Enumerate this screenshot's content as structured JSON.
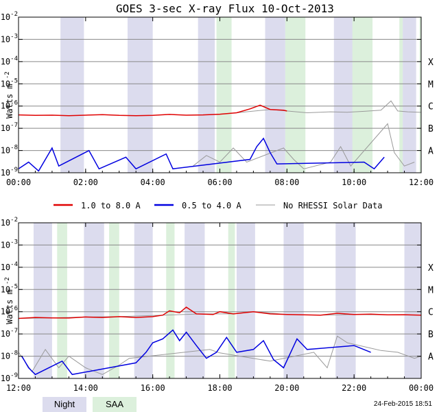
{
  "chart_data": {
    "type": "line",
    "title": "GOES 3-sec X-ray Flux   10-Oct-2013",
    "ylabel": "Watts m",
    "ylabel_exponent": "-2",
    "yscale": "log",
    "ylim": [
      1e-09,
      0.01
    ],
    "y_ticks": [
      {
        "base": "10",
        "exp": "-2"
      },
      {
        "base": "10",
        "exp": "-3"
      },
      {
        "base": "10",
        "exp": "-4"
      },
      {
        "base": "10",
        "exp": "-5"
      },
      {
        "base": "10",
        "exp": "-6"
      },
      {
        "base": "10",
        "exp": "-7"
      },
      {
        "base": "10",
        "exp": "-8"
      },
      {
        "base": "10",
        "exp": "-9"
      }
    ],
    "flare_classes": [
      {
        "label": "X",
        "value": 0.0001
      },
      {
        "label": "M",
        "value": 1e-05
      },
      {
        "label": "C",
        "value": 1e-06
      },
      {
        "label": "B",
        "value": 1e-07
      },
      {
        "label": "A",
        "value": 1e-08
      }
    ],
    "legend": {
      "long": {
        "label": "1.0 to 8.0 A",
        "color": "#e00000"
      },
      "short": {
        "label": "0.5 to 4.0 A",
        "color": "#0000e0"
      },
      "nodata": {
        "label": "No RHESSI Solar Data",
        "color": "#999999"
      }
    },
    "shading_legend": {
      "night": {
        "label": "Night",
        "color": "#dcdcee"
      },
      "saa": {
        "label": "SAA",
        "color": "#dcf0dc"
      }
    },
    "footer": "24-Feb-2015 18:51",
    "panels": [
      {
        "xlim_hours": [
          0,
          12
        ],
        "x_ticks": [
          "00:00",
          "02:00",
          "04:00",
          "06:00",
          "08:00",
          "10:00",
          "12:00"
        ],
        "night": [
          [
            1.25,
            1.95
          ],
          [
            3.25,
            4.0
          ],
          [
            5.35,
            5.85
          ],
          [
            7.35,
            7.95
          ],
          [
            9.4,
            10.0
          ],
          [
            11.45,
            11.85
          ]
        ],
        "saa": [
          [
            5.9,
            6.35
          ],
          [
            7.95,
            8.55
          ],
          [
            9.95,
            10.55
          ],
          [
            11.95,
            12.0
          ],
          [
            11.35,
            11.45
          ]
        ],
        "long_series": [
          [
            0.0,
            4e-07
          ],
          [
            0.5,
            3.8e-07
          ],
          [
            1.0,
            3.9e-07
          ],
          [
            1.5,
            3.7e-07
          ],
          [
            2.0,
            3.9e-07
          ],
          [
            2.5,
            4.1e-07
          ],
          [
            3.0,
            3.8e-07
          ],
          [
            3.5,
            3.7e-07
          ],
          [
            4.0,
            3.8e-07
          ],
          [
            4.5,
            4.2e-07
          ],
          [
            5.0,
            3.9e-07
          ],
          [
            5.5,
            4e-07
          ],
          [
            6.0,
            4.3e-07
          ],
          [
            6.5,
            5e-07
          ],
          [
            6.9,
            7.5e-07
          ],
          [
            7.2,
            1.1e-06
          ],
          [
            7.5,
            7e-07
          ],
          [
            7.9,
            6.5e-07
          ],
          [
            8.0,
            6e-07
          ]
        ],
        "long_nodata": [
          [
            5.0,
            3.9e-07
          ],
          [
            5.5,
            4e-07
          ],
          [
            6.0,
            4.3e-07
          ],
          [
            6.5,
            5e-07
          ],
          [
            7.5,
            7e-07
          ],
          [
            8.0,
            6e-07
          ],
          [
            8.6,
            5e-07
          ],
          [
            9.3,
            5.5e-07
          ],
          [
            9.8,
            5.3e-07
          ],
          [
            10.3,
            5.8e-07
          ],
          [
            10.8,
            6.5e-07
          ],
          [
            11.1,
            1.7e-06
          ],
          [
            11.3,
            6e-07
          ],
          [
            11.6,
            5.5e-07
          ],
          [
            12.0,
            5.2e-07
          ]
        ],
        "short_series": [
          [
            0.0,
            1.5e-09
          ],
          [
            0.3,
            3e-09
          ],
          [
            0.6,
            1.2e-09
          ],
          [
            1.0,
            1.3e-08
          ],
          [
            1.2,
            2e-09
          ],
          [
            2.1,
            1e-08
          ],
          [
            2.4,
            1.5e-09
          ],
          [
            3.2,
            5e-09
          ],
          [
            3.5,
            1.5e-09
          ],
          [
            4.4,
            7e-09
          ],
          [
            4.6,
            1.5e-09
          ],
          [
            6.9,
            4e-09
          ],
          [
            7.1,
            1.5e-08
          ],
          [
            7.3,
            3.5e-08
          ],
          [
            7.5,
            8e-09
          ],
          [
            7.7,
            2.5e-09
          ],
          [
            10.3,
            3e-09
          ],
          [
            10.6,
            1.5e-09
          ],
          [
            10.9,
            5e-09
          ]
        ],
        "short_nodata": [
          [
            5.2,
            2e-09
          ],
          [
            5.6,
            6e-09
          ],
          [
            6.0,
            3e-09
          ],
          [
            6.4,
            1.3e-08
          ],
          [
            6.8,
            3e-09
          ],
          [
            7.9,
            1.3e-08
          ],
          [
            8.2,
            4e-09
          ],
          [
            8.5,
            1.5e-09
          ],
          [
            9.3,
            3e-09
          ],
          [
            9.6,
            1.5e-08
          ],
          [
            9.9,
            2e-09
          ],
          [
            11.0,
            1.6e-07
          ],
          [
            11.2,
            8e-09
          ],
          [
            11.5,
            2e-09
          ],
          [
            11.8,
            3e-09
          ]
        ]
      },
      {
        "xlim_hours": [
          12,
          24
        ],
        "x_ticks": [
          "12:00",
          "14:00",
          "16:00",
          "18:00",
          "20:00",
          "22:00",
          "00:00"
        ],
        "night": [
          [
            12.45,
            13.0
          ],
          [
            13.95,
            14.55
          ],
          [
            15.45,
            16.0
          ],
          [
            16.95,
            17.55
          ],
          [
            18.5,
            19.05
          ],
          [
            19.9,
            20.5
          ],
          [
            21.45,
            22.05
          ],
          [
            23.5,
            24.0
          ]
        ],
        "saa": [
          [
            13.15,
            13.45
          ],
          [
            14.7,
            15.0
          ],
          [
            16.4,
            16.65
          ],
          [
            18.25,
            18.45
          ]
        ],
        "long_series": [
          [
            12.0,
            5e-07
          ],
          [
            12.5,
            5.5e-07
          ],
          [
            13.0,
            5.3e-07
          ],
          [
            13.5,
            5.2e-07
          ],
          [
            14.0,
            5.8e-07
          ],
          [
            14.5,
            5.5e-07
          ],
          [
            15.0,
            6e-07
          ],
          [
            15.5,
            5.5e-07
          ],
          [
            16.0,
            6e-07
          ],
          [
            16.3,
            7e-07
          ],
          [
            16.5,
            1.1e-06
          ],
          [
            16.8,
            9e-07
          ],
          [
            17.0,
            1.6e-06
          ],
          [
            17.3,
            8e-07
          ],
          [
            17.8,
            7.5e-07
          ],
          [
            18.0,
            1e-06
          ],
          [
            18.4,
            8e-07
          ],
          [
            19.0,
            1e-06
          ],
          [
            19.5,
            8e-07
          ],
          [
            20.0,
            7.5e-07
          ],
          [
            20.5,
            7.2e-07
          ],
          [
            21.0,
            7e-07
          ],
          [
            21.5,
            8.5e-07
          ],
          [
            22.0,
            7.5e-07
          ],
          [
            22.5,
            7.8e-07
          ],
          [
            23.0,
            7.2e-07
          ],
          [
            23.5,
            7.3e-07
          ],
          [
            24.0,
            7e-07
          ]
        ],
        "long_nodata": [
          [
            12.0,
            5e-07
          ],
          [
            13.0,
            5.3e-07
          ],
          [
            14.0,
            5.8e-07
          ],
          [
            15.0,
            6e-07
          ],
          [
            16.3,
            7e-07
          ],
          [
            17.5,
            8e-07
          ],
          [
            18.4,
            8e-07
          ],
          [
            19.0,
            1e-06
          ],
          [
            20.0,
            7.5e-07
          ],
          [
            21.0,
            7e-07
          ],
          [
            22.0,
            7.5e-07
          ],
          [
            23.0,
            7.2e-07
          ],
          [
            24.0,
            7e-07
          ]
        ],
        "short_series": [
          [
            12.1,
            1e-08
          ],
          [
            12.3,
            3e-09
          ],
          [
            12.5,
            1.5e-09
          ],
          [
            13.3,
            6e-09
          ],
          [
            13.6,
            1.5e-09
          ],
          [
            15.5,
            5e-09
          ],
          [
            15.8,
            1.5e-08
          ],
          [
            16.0,
            4e-08
          ],
          [
            16.3,
            6e-08
          ],
          [
            16.6,
            1.5e-07
          ],
          [
            16.8,
            5e-08
          ],
          [
            17.0,
            1.2e-07
          ],
          [
            17.3,
            3e-08
          ],
          [
            17.6,
            8e-09
          ],
          [
            17.9,
            1.5e-08
          ],
          [
            18.2,
            7e-08
          ],
          [
            18.5,
            1.5e-08
          ],
          [
            19.0,
            2e-08
          ],
          [
            19.3,
            5e-08
          ],
          [
            19.6,
            7e-09
          ],
          [
            19.9,
            3e-09
          ],
          [
            20.3,
            6e-08
          ],
          [
            20.6,
            2e-08
          ],
          [
            22.0,
            3e-08
          ],
          [
            22.5,
            1.5e-08
          ]
        ],
        "short_nodata": [
          [
            12.0,
            1.5e-08
          ],
          [
            12.4,
            2e-09
          ],
          [
            12.8,
            2e-08
          ],
          [
            13.2,
            3e-09
          ],
          [
            13.5,
            1e-08
          ],
          [
            14.0,
            3e-09
          ],
          [
            14.5,
            1.5e-09
          ],
          [
            15.0,
            4e-09
          ],
          [
            15.3,
            8e-09
          ],
          [
            17.7,
            2e-08
          ],
          [
            18.0,
            1.4e-08
          ],
          [
            19.5,
            6e-09
          ],
          [
            20.8,
            1.5e-08
          ],
          [
            21.2,
            3e-09
          ],
          [
            21.5,
            8e-08
          ],
          [
            21.8,
            4e-08
          ],
          [
            22.8,
            1.8e-08
          ],
          [
            23.3,
            1.5e-08
          ],
          [
            23.8,
            8e-09
          ],
          [
            24.0,
            1e-08
          ]
        ]
      }
    ]
  }
}
